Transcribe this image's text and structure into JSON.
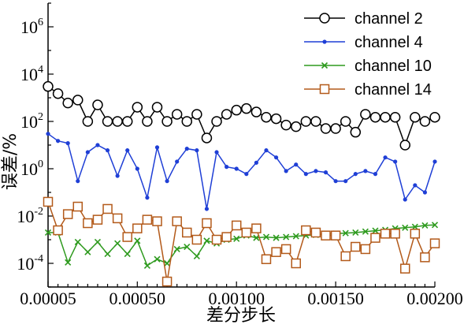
{
  "chart_data": {
    "type": "line",
    "xlabel": "差分步长",
    "ylabel": "误差/%",
    "yscale": "log",
    "xlim": [
      5e-05,
      0.002
    ],
    "ylim": [
      1e-05,
      10000000
    ],
    "x_ticks": [
      "0.00005",
      "0.00050",
      "0.00100",
      "0.00150",
      "0.00200"
    ],
    "y_ticks": [
      {
        "exp": "6",
        "value": 1000000
      },
      {
        "exp": "4",
        "value": 10000
      },
      {
        "exp": "2",
        "value": 100
      },
      {
        "exp": "0",
        "value": 1
      },
      {
        "exp": "-2",
        "value": 0.01
      },
      {
        "exp": "-4",
        "value": 0.0001
      }
    ],
    "y_tick_base": "10",
    "grid": false,
    "legend_position": "top-right",
    "x": [
      5e-05,
      0.0001,
      0.00015,
      0.0002,
      0.00025,
      0.0003,
      0.00035,
      0.0004,
      0.00045,
      0.0005,
      0.00055,
      0.0006,
      0.00065,
      0.0007,
      0.00075,
      0.0008,
      0.00085,
      0.0009,
      0.00095,
      0.001,
      0.00105,
      0.0011,
      0.00115,
      0.0012,
      0.00125,
      0.0013,
      0.00135,
      0.0014,
      0.00145,
      0.0015,
      0.00155,
      0.0016,
      0.00165,
      0.0017,
      0.00175,
      0.0018,
      0.00185,
      0.0019,
      0.00195,
      0.002
    ],
    "series": [
      {
        "name": "channel 2",
        "color": "#000000",
        "marker": "circle",
        "values": [
          3000,
          1500,
          600,
          800,
          100,
          500,
          100,
          100,
          100,
          400,
          100,
          400,
          100,
          200,
          100,
          200,
          20,
          100,
          200,
          300,
          350,
          250,
          150,
          130,
          70,
          60,
          100,
          100,
          50,
          50,
          100,
          35,
          200,
          150,
          150,
          150,
          10,
          150,
          100,
          150
        ]
      },
      {
        "name": "channel 4",
        "color": "#1f3fd6",
        "marker": "dot",
        "values": [
          30,
          15,
          12,
          0.3,
          5,
          10,
          6,
          0.5,
          6,
          1,
          0.06,
          8,
          0.3,
          2,
          7,
          6,
          0.02,
          5,
          1.2,
          1,
          0.6,
          1.8,
          6,
          3,
          0.8,
          1.5,
          0.6,
          0.8,
          0.7,
          0.3,
          0.3,
          0.6,
          0.8,
          0.6,
          3,
          2,
          0.05,
          0.2,
          0.1,
          2
        ]
      },
      {
        "name": "channel 10",
        "color": "#2e9a1e",
        "marker": "x",
        "values": [
          0.002,
          0.002,
          0.00011,
          0.0008,
          0.0003,
          0.0008,
          0.00025,
          0.0007,
          0.00025,
          0.0009,
          8e-05,
          0.00015,
          0.0001,
          0.0004,
          0.0005,
          0.0002,
          0.0009,
          0.0007,
          0.001,
          0.0011,
          0.0015,
          0.0012,
          0.0013,
          0.0012,
          0.0013,
          0.0014,
          0.0015,
          0.0016,
          0.0017,
          0.0018,
          0.0019,
          0.002,
          0.0022,
          0.0024,
          0.0026,
          0.003,
          0.0032,
          0.0035,
          0.004,
          0.0042
        ]
      },
      {
        "name": "channel 14",
        "color": "#b35a1a",
        "marker": "square",
        "values": [
          0.04,
          0.0025,
          0.012,
          0.025,
          0.005,
          0.007,
          0.02,
          0.008,
          0.0013,
          0.003,
          0.007,
          0.006,
          1.7e-05,
          0.006,
          0.002,
          0.001,
          0.005,
          0.001,
          0.0013,
          0.004,
          0.002,
          0.003,
          0.00015,
          0.0003,
          0.0004,
          0.0001,
          0.0025,
          0.002,
          0.0015,
          0.0015,
          0.0002,
          0.0005,
          0.0004,
          0.0012,
          0.0018,
          0.0018,
          6e-05,
          0.0018,
          0.00018,
          0.0007
        ]
      }
    ]
  }
}
